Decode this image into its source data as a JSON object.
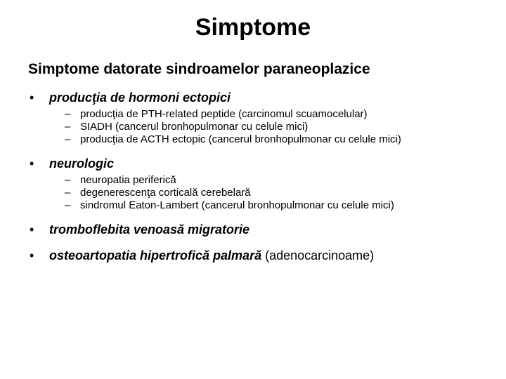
{
  "title": {
    "text": "Simptome",
    "fontsize": 34
  },
  "subtitle": {
    "text": "Simptome datorate sindroamelor paraneoplazice",
    "fontsize": 21
  },
  "l1_fontsize": 18,
  "l2_fontsize": 15,
  "text_color": "#000000",
  "background_color": "#ffffff",
  "items": [
    {
      "label": "producţia de hormoni ectopici",
      "suffix": "",
      "sub": [
        "producţia de PTH-related peptide (carcinomul scuamocelular)",
        "SIADH (cancerul bronhopulmonar cu celule mici)",
        "producţia de ACTH ectopic (cancerul bronhopulmonar cu celule mici)"
      ]
    },
    {
      "label": "neurologic",
      "suffix": "",
      "sub": [
        "neuropatia periferică",
        "degenerescenţa corticală cerebelară",
        "sindromul Eaton-Lambert (cancerul bronhopulmonar cu celule mici)"
      ]
    },
    {
      "label": "tromboflebita venoasă migratorie",
      "suffix": "",
      "sub": []
    },
    {
      "label": "osteoartopatia hipertrofică palmară",
      "suffix": " (adenocarcinoame)",
      "sub": []
    }
  ]
}
